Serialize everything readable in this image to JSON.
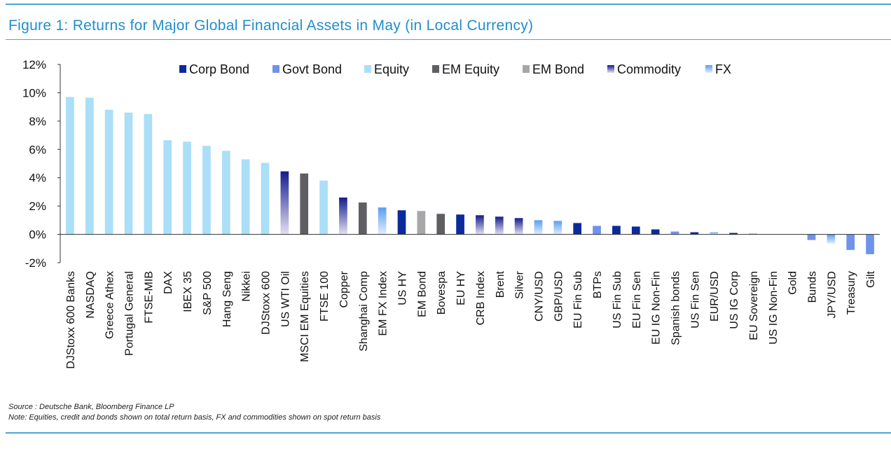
{
  "title": "Figure 1: Returns for Major Global Financial Assets in May (in Local Currency)",
  "source": "Source : Deutsche Bank, Bloomberg Finance LP",
  "note": "Note: Equities, credit and bonds shown on total return basis, FX and commodities shown on spot return basis",
  "colors": {
    "accent": "#1f8fcb",
    "Corp Bond": "#0b2a9c",
    "Govt Bond": "#6f93ea",
    "Equity": "#aadff7",
    "EM Equity": "#5f5f63",
    "EM Bond": "#a7a7aa",
    "Commodity": "#141c8c",
    "FX": "#5b9ef0"
  },
  "chart_data": {
    "type": "bar",
    "title": "",
    "xlabel": "",
    "ylabel": "",
    "ylim": [
      -2,
      12
    ],
    "yticks": [
      12,
      10,
      8,
      6,
      4,
      2,
      0,
      -2
    ],
    "ytick_labels": [
      "12%",
      "10%",
      "8%",
      "6%",
      "4%",
      "2%",
      "0%",
      "-2%"
    ],
    "grid": false,
    "legend_position": "top",
    "legend": [
      "Corp Bond",
      "Govt Bond",
      "Equity",
      "EM Equity",
      "EM Bond",
      "Commodity",
      "FX"
    ],
    "categories": [
      "DJStoxx 600 Banks",
      "NASDAQ",
      "Greece Athex",
      "Portugal General",
      "FTSE-MIB",
      "DAX",
      "IBEX 35",
      "S&P 500",
      "Hang Seng",
      "Nikkei",
      "DJStoxx 600",
      "US WTI Oil",
      "MSCI EM Equities",
      "FTSE 100",
      "Copper",
      "Shanghai Comp",
      "EM FX Index",
      "US HY",
      "EM Bond",
      "Bovespa",
      "EU HY",
      "CRB Index",
      "Brent",
      "Silver",
      "CNY/USD",
      "GBP/USD",
      "EU Fin Sub",
      "BTPs",
      "US Fin Sub",
      "EU Fin Sen",
      "EU IG Non-Fin",
      "Spanish bonds",
      "US Fin Sen",
      "EUR/USD",
      "US IG Corp",
      "EU Sovereign",
      "US IG Non-Fin",
      "Gold",
      "Bunds",
      "JPY/USD",
      "Treasury",
      "Gilt"
    ],
    "values": [
      9.7,
      9.65,
      8.8,
      8.6,
      8.5,
      6.65,
      6.55,
      6.25,
      5.9,
      5.3,
      5.05,
      4.45,
      4.3,
      3.8,
      2.6,
      2.25,
      1.9,
      1.7,
      1.65,
      1.45,
      1.4,
      1.35,
      1.25,
      1.15,
      1.0,
      0.95,
      0.8,
      0.6,
      0.6,
      0.55,
      0.35,
      0.2,
      0.15,
      0.15,
      0.1,
      0.05,
      0.0,
      0.0,
      -0.4,
      -0.65,
      -1.1,
      -1.4
    ],
    "groups": [
      "Equity",
      "Equity",
      "Equity",
      "Equity",
      "Equity",
      "Equity",
      "Equity",
      "Equity",
      "Equity",
      "Equity",
      "Equity",
      "Commodity",
      "EM Equity",
      "Equity",
      "Commodity",
      "EM Equity",
      "FX",
      "Corp Bond",
      "EM Bond",
      "EM Equity",
      "Corp Bond",
      "Commodity",
      "Commodity",
      "Commodity",
      "FX",
      "FX",
      "Corp Bond",
      "Govt Bond",
      "Corp Bond",
      "Corp Bond",
      "Corp Bond",
      "Govt Bond",
      "Corp Bond",
      "FX",
      "Corp Bond",
      "Govt Bond",
      "Corp Bond",
      "Commodity",
      "Govt Bond",
      "FX",
      "Govt Bond",
      "Govt Bond"
    ]
  }
}
